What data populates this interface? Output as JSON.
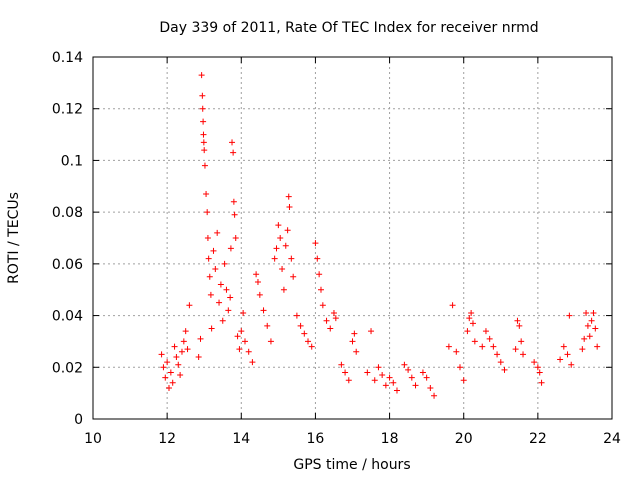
{
  "chart_data": {
    "type": "scatter",
    "title": "Day 339 of 2011, Rate Of TEC Index for receiver nrmd",
    "xlabel": "GPS time / hours",
    "ylabel": "ROTI / TECUs",
    "xlim": [
      10,
      24
    ],
    "ylim": [
      0,
      0.14
    ],
    "xticks": [
      "10",
      "12",
      "14",
      "16",
      "18",
      "20",
      "22",
      "24"
    ],
    "yticks": [
      "0",
      "0.02",
      "0.04",
      "0.06",
      "0.08",
      "0.1",
      "0.12",
      "0.14"
    ],
    "grid": true,
    "marker": "plus",
    "color": "#ff0000",
    "series": [
      {
        "name": "ROTI",
        "points": [
          [
            11.85,
            0.025
          ],
          [
            11.9,
            0.02
          ],
          [
            11.95,
            0.016
          ],
          [
            12.0,
            0.022
          ],
          [
            12.05,
            0.012
          ],
          [
            12.1,
            0.018
          ],
          [
            12.15,
            0.014
          ],
          [
            12.2,
            0.028
          ],
          [
            12.25,
            0.024
          ],
          [
            12.3,
            0.021
          ],
          [
            12.35,
            0.017
          ],
          [
            12.4,
            0.026
          ],
          [
            12.45,
            0.03
          ],
          [
            12.5,
            0.034
          ],
          [
            12.55,
            0.027
          ],
          [
            12.6,
            0.044
          ],
          [
            12.85,
            0.024
          ],
          [
            12.9,
            0.031
          ],
          [
            12.93,
            0.133
          ],
          [
            12.95,
            0.125
          ],
          [
            12.96,
            0.12
          ],
          [
            12.97,
            0.115
          ],
          [
            12.98,
            0.11
          ],
          [
            12.99,
            0.107
          ],
          [
            13.0,
            0.104
          ],
          [
            13.02,
            0.098
          ],
          [
            13.05,
            0.087
          ],
          [
            13.08,
            0.08
          ],
          [
            13.1,
            0.07
          ],
          [
            13.12,
            0.062
          ],
          [
            13.15,
            0.055
          ],
          [
            13.18,
            0.048
          ],
          [
            13.2,
            0.035
          ],
          [
            13.25,
            0.065
          ],
          [
            13.3,
            0.058
          ],
          [
            13.35,
            0.072
          ],
          [
            13.4,
            0.045
          ],
          [
            13.45,
            0.052
          ],
          [
            13.5,
            0.038
          ],
          [
            13.55,
            0.06
          ],
          [
            13.6,
            0.05
          ],
          [
            13.65,
            0.042
          ],
          [
            13.7,
            0.047
          ],
          [
            13.72,
            0.066
          ],
          [
            13.75,
            0.107
          ],
          [
            13.78,
            0.103
          ],
          [
            13.8,
            0.084
          ],
          [
            13.82,
            0.079
          ],
          [
            13.85,
            0.07
          ],
          [
            13.9,
            0.032
          ],
          [
            13.95,
            0.027
          ],
          [
            14.0,
            0.034
          ],
          [
            14.05,
            0.041
          ],
          [
            14.1,
            0.03
          ],
          [
            14.2,
            0.026
          ],
          [
            14.3,
            0.022
          ],
          [
            14.4,
            0.056
          ],
          [
            14.45,
            0.053
          ],
          [
            14.5,
            0.048
          ],
          [
            14.6,
            0.042
          ],
          [
            14.7,
            0.036
          ],
          [
            14.8,
            0.03
          ],
          [
            14.9,
            0.062
          ],
          [
            14.95,
            0.066
          ],
          [
            15.0,
            0.075
          ],
          [
            15.05,
            0.07
          ],
          [
            15.1,
            0.058
          ],
          [
            15.15,
            0.05
          ],
          [
            15.2,
            0.067
          ],
          [
            15.25,
            0.073
          ],
          [
            15.28,
            0.086
          ],
          [
            15.3,
            0.082
          ],
          [
            15.35,
            0.062
          ],
          [
            15.4,
            0.055
          ],
          [
            15.5,
            0.04
          ],
          [
            15.6,
            0.036
          ],
          [
            15.7,
            0.033
          ],
          [
            15.8,
            0.03
          ],
          [
            15.9,
            0.028
          ],
          [
            16.0,
            0.068
          ],
          [
            16.05,
            0.062
          ],
          [
            16.1,
            0.056
          ],
          [
            16.15,
            0.05
          ],
          [
            16.2,
            0.044
          ],
          [
            16.3,
            0.038
          ],
          [
            16.4,
            0.035
          ],
          [
            16.5,
            0.041
          ],
          [
            16.55,
            0.039
          ],
          [
            16.7,
            0.021
          ],
          [
            16.8,
            0.018
          ],
          [
            16.9,
            0.015
          ],
          [
            17.0,
            0.03
          ],
          [
            17.05,
            0.033
          ],
          [
            17.1,
            0.026
          ],
          [
            17.4,
            0.018
          ],
          [
            17.5,
            0.034
          ],
          [
            17.6,
            0.015
          ],
          [
            17.7,
            0.02
          ],
          [
            17.8,
            0.017
          ],
          [
            17.9,
            0.013
          ],
          [
            18.0,
            0.016
          ],
          [
            18.1,
            0.014
          ],
          [
            18.2,
            0.011
          ],
          [
            18.4,
            0.021
          ],
          [
            18.5,
            0.019
          ],
          [
            18.6,
            0.016
          ],
          [
            18.7,
            0.013
          ],
          [
            18.9,
            0.018
          ],
          [
            19.0,
            0.016
          ],
          [
            19.1,
            0.012
          ],
          [
            19.2,
            0.009
          ],
          [
            19.6,
            0.028
          ],
          [
            19.7,
            0.044
          ],
          [
            19.8,
            0.026
          ],
          [
            19.9,
            0.02
          ],
          [
            20.0,
            0.015
          ],
          [
            20.1,
            0.034
          ],
          [
            20.15,
            0.039
          ],
          [
            20.2,
            0.041
          ],
          [
            20.25,
            0.037
          ],
          [
            20.3,
            0.03
          ],
          [
            20.5,
            0.028
          ],
          [
            20.6,
            0.034
          ],
          [
            20.7,
            0.031
          ],
          [
            20.8,
            0.028
          ],
          [
            20.9,
            0.025
          ],
          [
            21.0,
            0.022
          ],
          [
            21.1,
            0.019
          ],
          [
            21.4,
            0.027
          ],
          [
            21.45,
            0.038
          ],
          [
            21.5,
            0.036
          ],
          [
            21.55,
            0.03
          ],
          [
            21.6,
            0.025
          ],
          [
            21.9,
            0.022
          ],
          [
            22.0,
            0.02
          ],
          [
            22.05,
            0.018
          ],
          [
            22.1,
            0.014
          ],
          [
            22.6,
            0.023
          ],
          [
            22.7,
            0.028
          ],
          [
            22.8,
            0.025
          ],
          [
            22.85,
            0.04
          ],
          [
            22.9,
            0.021
          ],
          [
            23.2,
            0.027
          ],
          [
            23.25,
            0.031
          ],
          [
            23.3,
            0.041
          ],
          [
            23.35,
            0.036
          ],
          [
            23.4,
            0.032
          ],
          [
            23.45,
            0.038
          ],
          [
            23.5,
            0.041
          ],
          [
            23.55,
            0.035
          ],
          [
            23.6,
            0.028
          ]
        ]
      }
    ]
  }
}
